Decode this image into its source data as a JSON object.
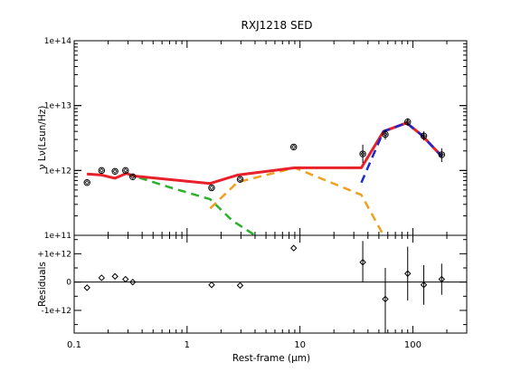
{
  "chart_data": [
    {
      "type": "line",
      "title": "RXJ1218 SED",
      "xlabel": "Rest-frame (μm)",
      "ylabel": "ν Lν(Lsun/Hz)",
      "xscale": "log",
      "yscale": "log",
      "xlim": [
        0.1,
        300
      ],
      "ylim": [
        100000000000.0,
        100000000000000.0
      ],
      "x_ticks": [
        {
          "value": 0.1,
          "label": "0.1"
        },
        {
          "value": 1,
          "label": "1"
        },
        {
          "value": 10,
          "label": "10"
        },
        {
          "value": 100,
          "label": "100"
        }
      ],
      "y_ticks": [
        {
          "value": 100000000000.0,
          "label": "1e+11"
        },
        {
          "value": 1000000000000.0,
          "label": "1e+12"
        },
        {
          "value": 10000000000000.0,
          "label": "1e+13"
        },
        {
          "value": 100000000000000.0,
          "label": "1e+14"
        }
      ],
      "observations": [
        {
          "x": 0.13,
          "y": 650000000000.0
        },
        {
          "x": 0.175,
          "y": 1000000000000.0
        },
        {
          "x": 0.23,
          "y": 970000000000.0
        },
        {
          "x": 0.285,
          "y": 1000000000000.0
        },
        {
          "x": 0.33,
          "y": 800000000000.0
        },
        {
          "x": 1.65,
          "y": 540000000000.0
        },
        {
          "x": 2.95,
          "y": 730000000000.0
        },
        {
          "x": 8.8,
          "y": 2300000000000.0
        },
        {
          "x": 36,
          "y": 1800000000000.0,
          "err_lo": 1300000000000.0,
          "err_hi": 2500000000000.0
        },
        {
          "x": 57,
          "y": 3600000000000.0,
          "err_lo": 3000000000000.0,
          "err_hi": 4300000000000.0
        },
        {
          "x": 90,
          "y": 5600000000000.0,
          "err_lo": 4900000000000.0,
          "err_hi": 6400000000000.0
        },
        {
          "x": 125,
          "y": 3400000000000.0,
          "err_lo": 2900000000000.0,
          "err_hi": 4000000000000.0
        },
        {
          "x": 180,
          "y": 1750000000000.0,
          "err_lo": 1350000000000.0,
          "err_hi": 2200000000000.0
        }
      ],
      "series": [
        {
          "color": "#e8202a",
          "style": "solid",
          "x": [
            0.13,
            0.175,
            0.23,
            0.29,
            0.34,
            1.6,
            2.8,
            9.0,
            35,
            55,
            88,
            120,
            180
          ],
          "y": [
            880000000000.0,
            850000000000.0,
            760000000000.0,
            900000000000.0,
            820000000000.0,
            630000000000.0,
            850000000000.0,
            1100000000000.0,
            1100000000000.0,
            4000000000000.0,
            5400000000000.0,
            3500000000000.0,
            1650000000000.0
          ]
        },
        {
          "color": "#2ab02a",
          "style": "dashed",
          "x": [
            0.13,
            0.175,
            0.23,
            0.29,
            0.34,
            0.7,
            1.6,
            2.5,
            4.0
          ],
          "y": [
            880000000000.0,
            850000000000.0,
            760000000000.0,
            900000000000.0,
            820000000000.0,
            550000000000.0,
            360000000000.0,
            170000000000.0,
            100000000000.0
          ]
        },
        {
          "color": "#f0a020",
          "style": "dashed",
          "x": [
            1.6,
            2.8,
            9.0,
            35,
            55
          ],
          "y": [
            260000000000.0,
            660000000000.0,
            1100000000000.0,
            420000000000.0,
            100000000000.0
          ]
        },
        {
          "color": "#1a2ad0",
          "style": "dashed",
          "x": [
            35,
            55,
            88,
            120,
            180
          ],
          "y": [
            650000000000.0,
            4000000000000.0,
            5400000000000.0,
            3500000000000.0,
            1650000000000.0
          ]
        }
      ]
    },
    {
      "type": "scatter",
      "xlabel": "Rest-frame (μm)",
      "ylabel": "Residuals",
      "xscale": "log",
      "xlim": [
        0.1,
        300
      ],
      "ylim": [
        -1800000000000.0,
        1650000000000.0
      ],
      "y_ticks": [
        {
          "value": 1000000000000.0,
          "label": "+1e+12"
        },
        {
          "value": 0,
          "label": "0"
        },
        {
          "value": -1000000000000.0,
          "label": "-1e+12"
        }
      ],
      "reference_line": 0,
      "points": [
        {
          "x": 0.13,
          "y": -200000000000.0
        },
        {
          "x": 0.175,
          "y": 150000000000.0
        },
        {
          "x": 0.23,
          "y": 200000000000.0
        },
        {
          "x": 0.285,
          "y": 100000000000.0
        },
        {
          "x": 0.33,
          "y": 0
        },
        {
          "x": 1.65,
          "y": -100000000000.0
        },
        {
          "x": 2.95,
          "y": -120000000000.0
        },
        {
          "x": 8.8,
          "y": 1200000000000.0
        },
        {
          "x": 36,
          "y": 700000000000.0,
          "err_lo": 0,
          "err_hi": 1450000000000.0
        },
        {
          "x": 57,
          "y": -600000000000.0,
          "err_lo": -1800000000000.0,
          "err_hi": 500000000000.0
        },
        {
          "x": 90,
          "y": 300000000000.0,
          "err_lo": -650000000000.0,
          "err_hi": 1250000000000.0
        },
        {
          "x": 125,
          "y": -100000000000.0,
          "err_lo": -800000000000.0,
          "err_hi": 600000000000.0
        },
        {
          "x": 180,
          "y": 100000000000.0,
          "err_lo": -450000000000.0,
          "err_hi": 650000000000.0
        }
      ]
    }
  ]
}
